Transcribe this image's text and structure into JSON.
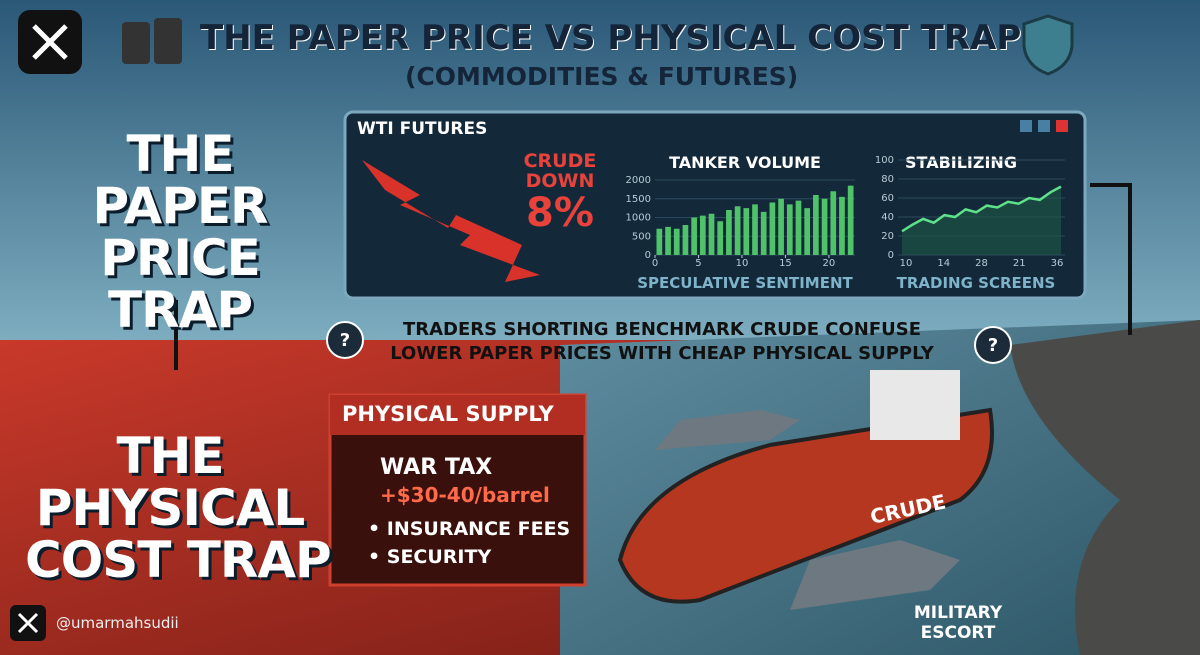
{
  "header": {
    "title": "THE PAPER PRICE VS PHYSICAL COST TRAP",
    "subtitle": "(COMMODITIES & FUTURES)"
  },
  "paper_trap": {
    "lines": [
      "THE",
      "PAPER",
      "PRICE",
      "TRAP"
    ]
  },
  "physical_trap": {
    "lines": [
      "THE",
      "PHYSICAL",
      "COST TRAP"
    ]
  },
  "question_mark": "?",
  "panel": {
    "title": "WTI FUTURES",
    "crude": [
      "CRUDE",
      "DOWN",
      "8%"
    ],
    "tanker": {
      "title": "TANKER VOLUME",
      "caption": "SPECULATIVE SENTIMENT",
      "ylim": [
        0,
        2000
      ],
      "yticks": [
        0,
        500,
        1000,
        1500,
        2000
      ],
      "xlim": [
        0,
        23
      ],
      "xticks": [
        0,
        5,
        10,
        15,
        20
      ],
      "values": [
        700,
        750,
        700,
        800,
        1000,
        1050,
        1100,
        900,
        1200,
        1300,
        1250,
        1350,
        1150,
        1400,
        1500,
        1350,
        1450,
        1250,
        1600,
        1500,
        1700,
        1550,
        1850
      ],
      "color": "#4fc26a"
    },
    "stabilizing": {
      "title": "STABILIZING",
      "caption": "TRADING SCREENS",
      "ylim": [
        0,
        100
      ],
      "yticks": [
        0,
        20,
        40,
        60,
        80,
        100
      ],
      "categories": [
        "10",
        "14",
        "28",
        "21",
        "36"
      ],
      "values": [
        25,
        32,
        38,
        34,
        42,
        40,
        48,
        45,
        52,
        50,
        56,
        54,
        60,
        58,
        66,
        72
      ],
      "color": "#5fe08a"
    }
  },
  "message": {
    "lines": [
      "TRADERS SHORTING BENCHMARK CRUDE CONFUSE",
      "LOWER PAPER PRICES WITH CHEAP PHYSICAL SUPPLY"
    ]
  },
  "supply": {
    "title": "PHYSICAL SUPPLY",
    "tax_label": "WAR TAX",
    "tax_value": "+$30-40/barrel",
    "bullets": [
      "INSURANCE FEES",
      "SECURITY"
    ]
  },
  "ship_label": "CRUDE",
  "escort": {
    "lines": [
      "MILITARY",
      "ESCORT"
    ]
  },
  "handle": "@umarmahsudii"
}
